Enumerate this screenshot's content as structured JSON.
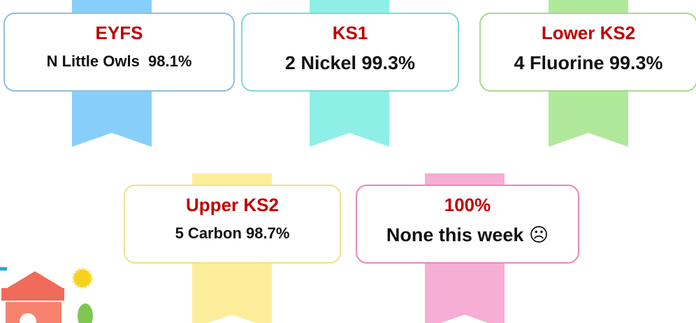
{
  "badges": [
    {
      "title": "EYFS",
      "text": "N Little Owls  98.1%"
    },
    {
      "title": "KS1",
      "text": "2 Nickel 99.3%"
    },
    {
      "title": "Lower KS2",
      "text": "4 Fluorine 99.3%"
    },
    {
      "title": "Upper KS2",
      "text": "5 Carbon 98.7%"
    },
    {
      "title": "100%",
      "text": "None this week ☹"
    }
  ]
}
